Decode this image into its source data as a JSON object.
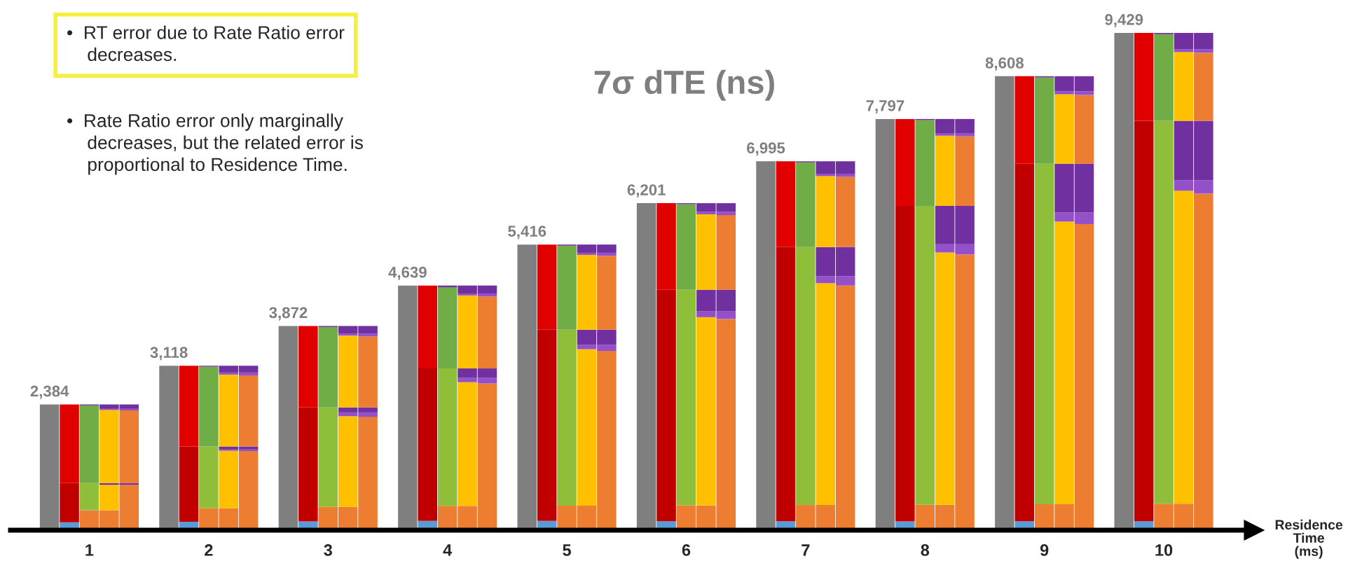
{
  "chart_data": {
    "type": "bar",
    "stacked": true,
    "title": "7σ dTE (ns)",
    "xlabel": "Residence\nTime\n(ms)",
    "annotations": [
      "•  RT error due to Rate Ratio error\n    decreases.",
      "•  Rate Ratio error only marginally\n    decreases, but the related error is\n    proportional to Residence Time."
    ],
    "tick_labels": "x",
    "categories": [
      null,
      null,
      "1",
      null,
      null,
      null,
      null,
      null,
      "2",
      null,
      null,
      null,
      null,
      null,
      "3",
      null,
      null,
      null,
      null,
      null,
      "4",
      null,
      null,
      null,
      null,
      null,
      "5",
      null,
      null,
      null,
      null,
      null,
      "6",
      null,
      null,
      null,
      null,
      null,
      "7",
      null,
      null,
      null,
      null,
      null,
      "8",
      null,
      null,
      null,
      null,
      null,
      "9",
      null,
      null,
      null,
      null,
      null,
      "10",
      null,
      null,
      null
    ],
    "series": [
      {
        "color": "#7f7f7f",
        "values": [
          2384,
          null,
          null,
          null,
          null,
          null,
          3118,
          null,
          null,
          null,
          null,
          null,
          3872,
          null,
          null,
          null,
          null,
          null,
          4639,
          null,
          null,
          null,
          null,
          null,
          5416,
          null,
          null,
          null,
          null,
          null,
          6201,
          null,
          null,
          null,
          null,
          null,
          6995,
          null,
          null,
          null,
          null,
          null,
          7797,
          null,
          null,
          null,
          null,
          null,
          8608,
          null,
          null,
          null,
          null,
          null,
          9429,
          null,
          null,
          null,
          null,
          null
        ],
        "value_labels": [
          "2,384",
          null,
          null,
          null,
          null,
          null,
          "3,118",
          null,
          null,
          null,
          null,
          null,
          "3,872",
          null,
          null,
          null,
          null,
          null,
          "4,639",
          null,
          null,
          null,
          null,
          null,
          "5,416",
          null,
          null,
          null,
          null,
          null,
          "6,201",
          null,
          null,
          null,
          null,
          null,
          "6,995",
          null,
          null,
          null,
          null,
          null,
          "7,797",
          null,
          null,
          null,
          null,
          null,
          "8,608",
          null,
          null,
          null,
          null,
          null,
          "9,429",
          null,
          null,
          null,
          null,
          null
        ]
      },
      {
        "color": "#5b9bd5",
        "values": [
          null,
          150,
          null,
          null,
          null,
          null,
          null,
          160,
          null,
          null,
          null,
          null,
          null,
          165,
          null,
          null,
          null,
          null,
          null,
          175,
          null,
          null,
          null,
          null,
          null,
          175,
          null,
          null,
          null,
          null,
          null,
          170,
          null,
          null,
          null,
          null,
          null,
          170,
          null,
          null,
          null,
          null,
          null,
          165,
          null,
          null,
          null,
          null,
          null,
          170,
          null,
          null,
          null,
          null,
          null,
          170,
          null,
          null,
          null,
          null
        ]
      },
      {
        "color": "#ed7d31",
        "values": [
          null,
          null,
          378,
          378,
          860,
          null,
          null,
          null,
          416,
          416,
          1500,
          null,
          null,
          null,
          440,
          440,
          2150,
          null,
          null,
          null,
          460,
          460,
          2782,
          null,
          null,
          null,
          465,
          465,
          3399,
          null,
          null,
          null,
          470,
          470,
          4005,
          null,
          null,
          null,
          477,
          477,
          4640,
          null,
          null,
          null,
          480,
          480,
          5227,
          null,
          null,
          null,
          490,
          490,
          5804,
          null,
          null,
          null,
          500,
          500,
          6382,
          null
        ]
      },
      {
        "color": "#c00000",
        "values": [
          null,
          744,
          null,
          null,
          null,
          null,
          null,
          1427,
          null,
          null,
          null,
          null,
          null,
          2163,
          null,
          null,
          null,
          null,
          null,
          2892,
          null,
          null,
          null,
          null,
          null,
          3626,
          null,
          null,
          null,
          null,
          null,
          4390,
          null,
          null,
          null,
          null,
          null,
          5199,
          null,
          null,
          null,
          null,
          null,
          5984,
          null,
          null,
          null,
          null,
          null,
          6779,
          null,
          null,
          null,
          null,
          null,
          7593,
          null,
          null,
          null,
          null
        ]
      },
      {
        "color": "#8fbf3a",
        "values": [
          null,
          null,
          516,
          null,
          null,
          null,
          null,
          null,
          1171,
          null,
          null,
          null,
          null,
          null,
          1888,
          null,
          null,
          null,
          null,
          null,
          2607,
          null,
          null,
          null,
          null,
          null,
          3336,
          null,
          null,
          null,
          null,
          null,
          4090,
          null,
          null,
          null,
          null,
          null,
          4892,
          null,
          null,
          null,
          null,
          null,
          5669,
          null,
          null,
          null,
          null,
          null,
          6459,
          null,
          null,
          null,
          null,
          null,
          7263,
          null,
          null,
          null
        ]
      },
      {
        "color": "#ffc000",
        "values": [
          null,
          null,
          null,
          482,
          null,
          null,
          null,
          null,
          null,
          1090,
          null,
          null,
          null,
          null,
          null,
          1721,
          null,
          null,
          null,
          null,
          null,
          2346,
          null,
          null,
          null,
          null,
          null,
          2967,
          null,
          null,
          null,
          null,
          null,
          3569,
          null,
          null,
          null,
          null,
          null,
          4207,
          null,
          null,
          null,
          null,
          null,
          4786,
          null,
          null,
          null,
          null,
          null,
          5362,
          null,
          null,
          null,
          null,
          null,
          5936,
          null,
          null
        ]
      },
      {
        "color": "#e00000",
        "values": [
          null,
          1490,
          null,
          null,
          null,
          null,
          null,
          1531,
          null,
          null,
          null,
          null,
          null,
          1544,
          null,
          null,
          null,
          null,
          null,
          1572,
          null,
          null,
          null,
          null,
          null,
          1615,
          null,
          null,
          null,
          null,
          null,
          1641,
          null,
          null,
          null,
          null,
          null,
          1626,
          null,
          null,
          null,
          null,
          null,
          1648,
          null,
          null,
          null,
          null,
          null,
          1659,
          null,
          null,
          null,
          null,
          null,
          1666,
          null,
          null,
          null,
          null
        ]
      },
      {
        "color": "#70ad47",
        "values": [
          null,
          null,
          1472,
          null,
          null,
          null,
          null,
          null,
          1513,
          null,
          null,
          null,
          null,
          null,
          1524,
          null,
          null,
          null,
          null,
          null,
          1540,
          null,
          null,
          null,
          null,
          null,
          1594,
          null,
          null,
          null,
          null,
          null,
          1620,
          null,
          null,
          null,
          null,
          null,
          1606,
          null,
          null,
          null,
          null,
          null,
          1626,
          null,
          null,
          null,
          null,
          null,
          1636,
          null,
          null,
          null,
          null,
          null,
          1642,
          null,
          null,
          null
        ]
      },
      {
        "color": "#9350c8",
        "values": [
          null,
          null,
          null,
          null,
          null,
          null,
          null,
          null,
          null,
          24,
          30,
          null,
          null,
          null,
          null,
          72,
          83,
          null,
          null,
          null,
          null,
          81,
          105,
          null,
          null,
          null,
          null,
          85,
          118,
          null,
          null,
          null,
          null,
          109,
          143,
          null,
          null,
          null,
          null,
          130,
          174,
          null,
          null,
          null,
          null,
          156,
          195,
          null,
          null,
          null,
          null,
          171,
          219,
          null,
          null,
          null,
          null,
          198,
          252,
          null
        ]
      },
      {
        "color": "#7030a0",
        "values": [
          null,
          null,
          18,
          34,
          34,
          null,
          null,
          null,
          18,
          57,
          57,
          null,
          null,
          null,
          20,
          95,
          95,
          null,
          null,
          null,
          32,
          180,
          180,
          null,
          null,
          null,
          21,
          284,
          284,
          null,
          null,
          null,
          21,
          412,
          412,
          null,
          null,
          null,
          20,
          555,
          555,
          null,
          null,
          null,
          22,
          727,
          727,
          null,
          null,
          null,
          23,
          926,
          926,
          null,
          null,
          null,
          24,
          1129,
          1129,
          null
        ]
      },
      {
        "color": "#ed7d31",
        "values": [
          null,
          null,
          null,
          null,
          1376,
          null,
          null,
          null,
          null,
          null,
          1348,
          null,
          null,
          null,
          null,
          null,
          1347,
          null,
          null,
          null,
          null,
          null,
          1365,
          null,
          null,
          null,
          null,
          null,
          1399,
          null,
          null,
          null,
          null,
          null,
          1415,
          null,
          null,
          null,
          null,
          null,
          1331,
          null,
          null,
          null,
          null,
          null,
          1319,
          null,
          null,
          null,
          null,
          null,
          1303,
          null,
          null,
          null,
          null,
          null,
          1289,
          null
        ]
      },
      {
        "color": "#ffc000",
        "values": [
          null,
          null,
          null,
          1386,
          null,
          null,
          null,
          null,
          null,
          1363,
          null,
          null,
          null,
          null,
          null,
          1362,
          null,
          null,
          null,
          null,
          null,
          1384,
          null,
          null,
          null,
          null,
          null,
          1419,
          null,
          null,
          null,
          null,
          null,
          1430,
          null,
          null,
          null,
          null,
          null,
          1346,
          null,
          null,
          null,
          null,
          null,
          1331,
          null,
          null,
          null,
          null,
          null,
          1317,
          null,
          null,
          null,
          null,
          null,
          1303,
          null,
          null
        ]
      },
      {
        "color": "#9350c8",
        "values": [
          null,
          null,
          null,
          20,
          30,
          null,
          null,
          null,
          null,
          40,
          55,
          null,
          null,
          null,
          null,
          40,
          55,
          null,
          null,
          null,
          null,
          38,
          57,
          null,
          null,
          null,
          null,
          40,
          60,
          null,
          null,
          null,
          null,
          50,
          65,
          null,
          null,
          null,
          null,
          45,
          60,
          null,
          null,
          null,
          null,
          50,
          62,
          null,
          null,
          null,
          null,
          54,
          68,
          null,
          null,
          null,
          null,
          55,
          69,
          null
        ]
      },
      {
        "color": "#7030a0",
        "values": [
          null,
          null,
          null,
          84,
          84,
          null,
          null,
          null,
          null,
          128,
          128,
          null,
          null,
          null,
          null,
          142,
          142,
          null,
          null,
          null,
          null,
          150,
          150,
          null,
          null,
          null,
          null,
          156,
          156,
          null,
          null,
          null,
          null,
          161,
          161,
          null,
          null,
          null,
          null,
          235,
          235,
          null,
          null,
          null,
          null,
          267,
          267,
          null,
          null,
          null,
          null,
          288,
          288,
          null,
          null,
          null,
          null,
          308,
          308,
          null
        ]
      }
    ]
  }
}
